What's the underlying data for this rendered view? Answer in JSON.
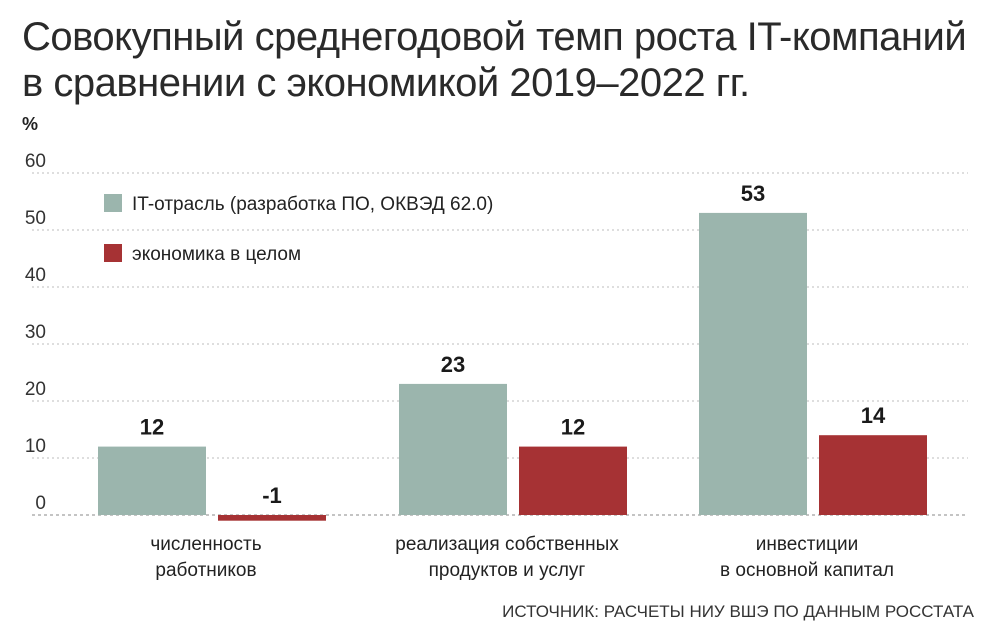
{
  "title_line1": "Совокупный среднегодовой темп роста IT-компаний",
  "title_line2": "в сравнении с экономикой 2019–2022 гг.",
  "unit": "%",
  "source": "ИСТОЧНИК: РАСЧЕТЫ НИУ ВШЭ ПО ДАННЫМ РОССТАТА",
  "colors": {
    "it": "#9bb5ad",
    "economy": "#a63234",
    "grid": "#bdbdbd",
    "zero_line": "#888888"
  },
  "chart_data": {
    "type": "bar",
    "categories": [
      [
        "численность",
        "работников"
      ],
      [
        "реализация собственных",
        "продуктов и услуг"
      ],
      [
        "инвестиции",
        "в основной капитал"
      ]
    ],
    "series": [
      {
        "name": "IT-отрасль (разработка ПО, ОКВЭД 62.0)",
        "values": [
          12,
          23,
          53
        ]
      },
      {
        "name": "экономика в целом",
        "values": [
          -1,
          12,
          14
        ]
      }
    ],
    "data_labels": [
      [
        "12",
        "23",
        "53"
      ],
      [
        "-1",
        "12",
        "14"
      ]
    ],
    "ylabel": "%",
    "ylim": [
      0,
      60
    ],
    "yticks": [
      0,
      10,
      20,
      30,
      40,
      50,
      60
    ],
    "grid": true,
    "legend_position": "top-left"
  }
}
